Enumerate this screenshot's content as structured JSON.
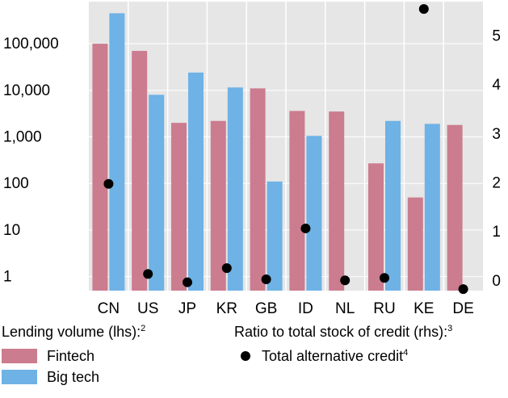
{
  "colors": {
    "fintech": "#cc7c8f",
    "bigtech": "#6eb2e6",
    "dot": "#000000",
    "plot_bg": "#e6e6e6",
    "grid": "#ffffff"
  },
  "chart_data": {
    "type": "bar",
    "categories": [
      "CN",
      "US",
      "JP",
      "KR",
      "GB",
      "ID",
      "NL",
      "RU",
      "KE",
      "DE"
    ],
    "left_axis": {
      "scale": "log",
      "range": [
        0.5,
        800000
      ],
      "ticks": [
        1,
        10,
        100,
        1000,
        10000,
        100000
      ],
      "tick_labels": [
        "1",
        "10",
        "100",
        "1,000",
        "10,000",
        "100,000"
      ]
    },
    "right_axis": {
      "scale": "linear",
      "range": [
        -0.2,
        5.7
      ],
      "ticks": [
        0,
        1,
        2,
        3,
        4,
        5
      ],
      "tick_labels": [
        "0",
        "1",
        "2",
        "3",
        "4",
        "5"
      ]
    },
    "grid": true,
    "series": [
      {
        "name": "Fintech",
        "axis": "left",
        "values": [
          100000,
          70000,
          2000,
          2200,
          11000,
          3600,
          3500,
          270,
          50,
          1800
        ]
      },
      {
        "name": "Big tech",
        "axis": "left",
        "values": [
          450000,
          8000,
          24000,
          11500,
          null,
          1050,
          null,
          2200,
          1900,
          null
        ],
        "extra": {
          "GB": 110
        }
      },
      {
        "name": "Total alternative credit",
        "axis": "right",
        "type": "scatter",
        "values": [
          1.98,
          0.14,
          -0.03,
          0.26,
          0.03,
          1.07,
          0.01,
          0.06,
          5.55,
          -0.17
        ]
      }
    ],
    "legend": {
      "left_title": "Lending volume (lhs):",
      "left_title_sup": "2",
      "right_title": "Ratio to total stock of credit (rhs):",
      "right_title_sup": "3",
      "fintech_label": "Fintech",
      "bigtech_label": "Big tech",
      "dot_label": "Total alternative credit",
      "dot_label_sup": "4"
    }
  }
}
